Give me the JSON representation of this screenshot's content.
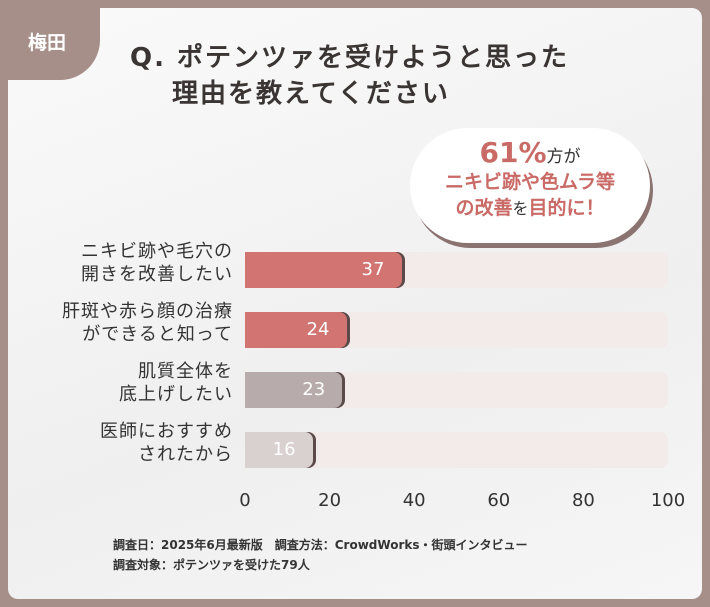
{
  "tag": "梅田",
  "title_line1": "Q. ポテンツァを受けようと思った",
  "title_line2": "理由を教えてください",
  "callout": {
    "percent": "61%",
    "after_percent": "方が",
    "line2": "ニキビ跡や色ムラ等",
    "line3_a": "の改善",
    "line3_b": "を",
    "line3_c": "目的に！"
  },
  "chart_data": {
    "type": "bar",
    "orientation": "horizontal",
    "categories": [
      [
        "ニキビ跡や毛穴の",
        "開きを改善したい"
      ],
      [
        "肝斑や赤ら顔の治療",
        "ができると知って"
      ],
      [
        "肌質全体を",
        "底上げしたい"
      ],
      [
        "医師におすすめ",
        "されたから"
      ]
    ],
    "values": [
      37,
      24,
      23,
      16
    ],
    "xlim": [
      0,
      100
    ],
    "ticks": [
      0,
      20,
      40,
      60,
      80,
      100
    ],
    "colors": [
      "#d27471",
      "#d27471",
      "#b7acab",
      "#d9d1d0"
    ]
  },
  "footer": {
    "line1": "調査日：2025年6月最新版　調査方法：CrowdWorks・街頭インタビュー",
    "line2": "調査対象：ポテンツァを受けた79人"
  }
}
